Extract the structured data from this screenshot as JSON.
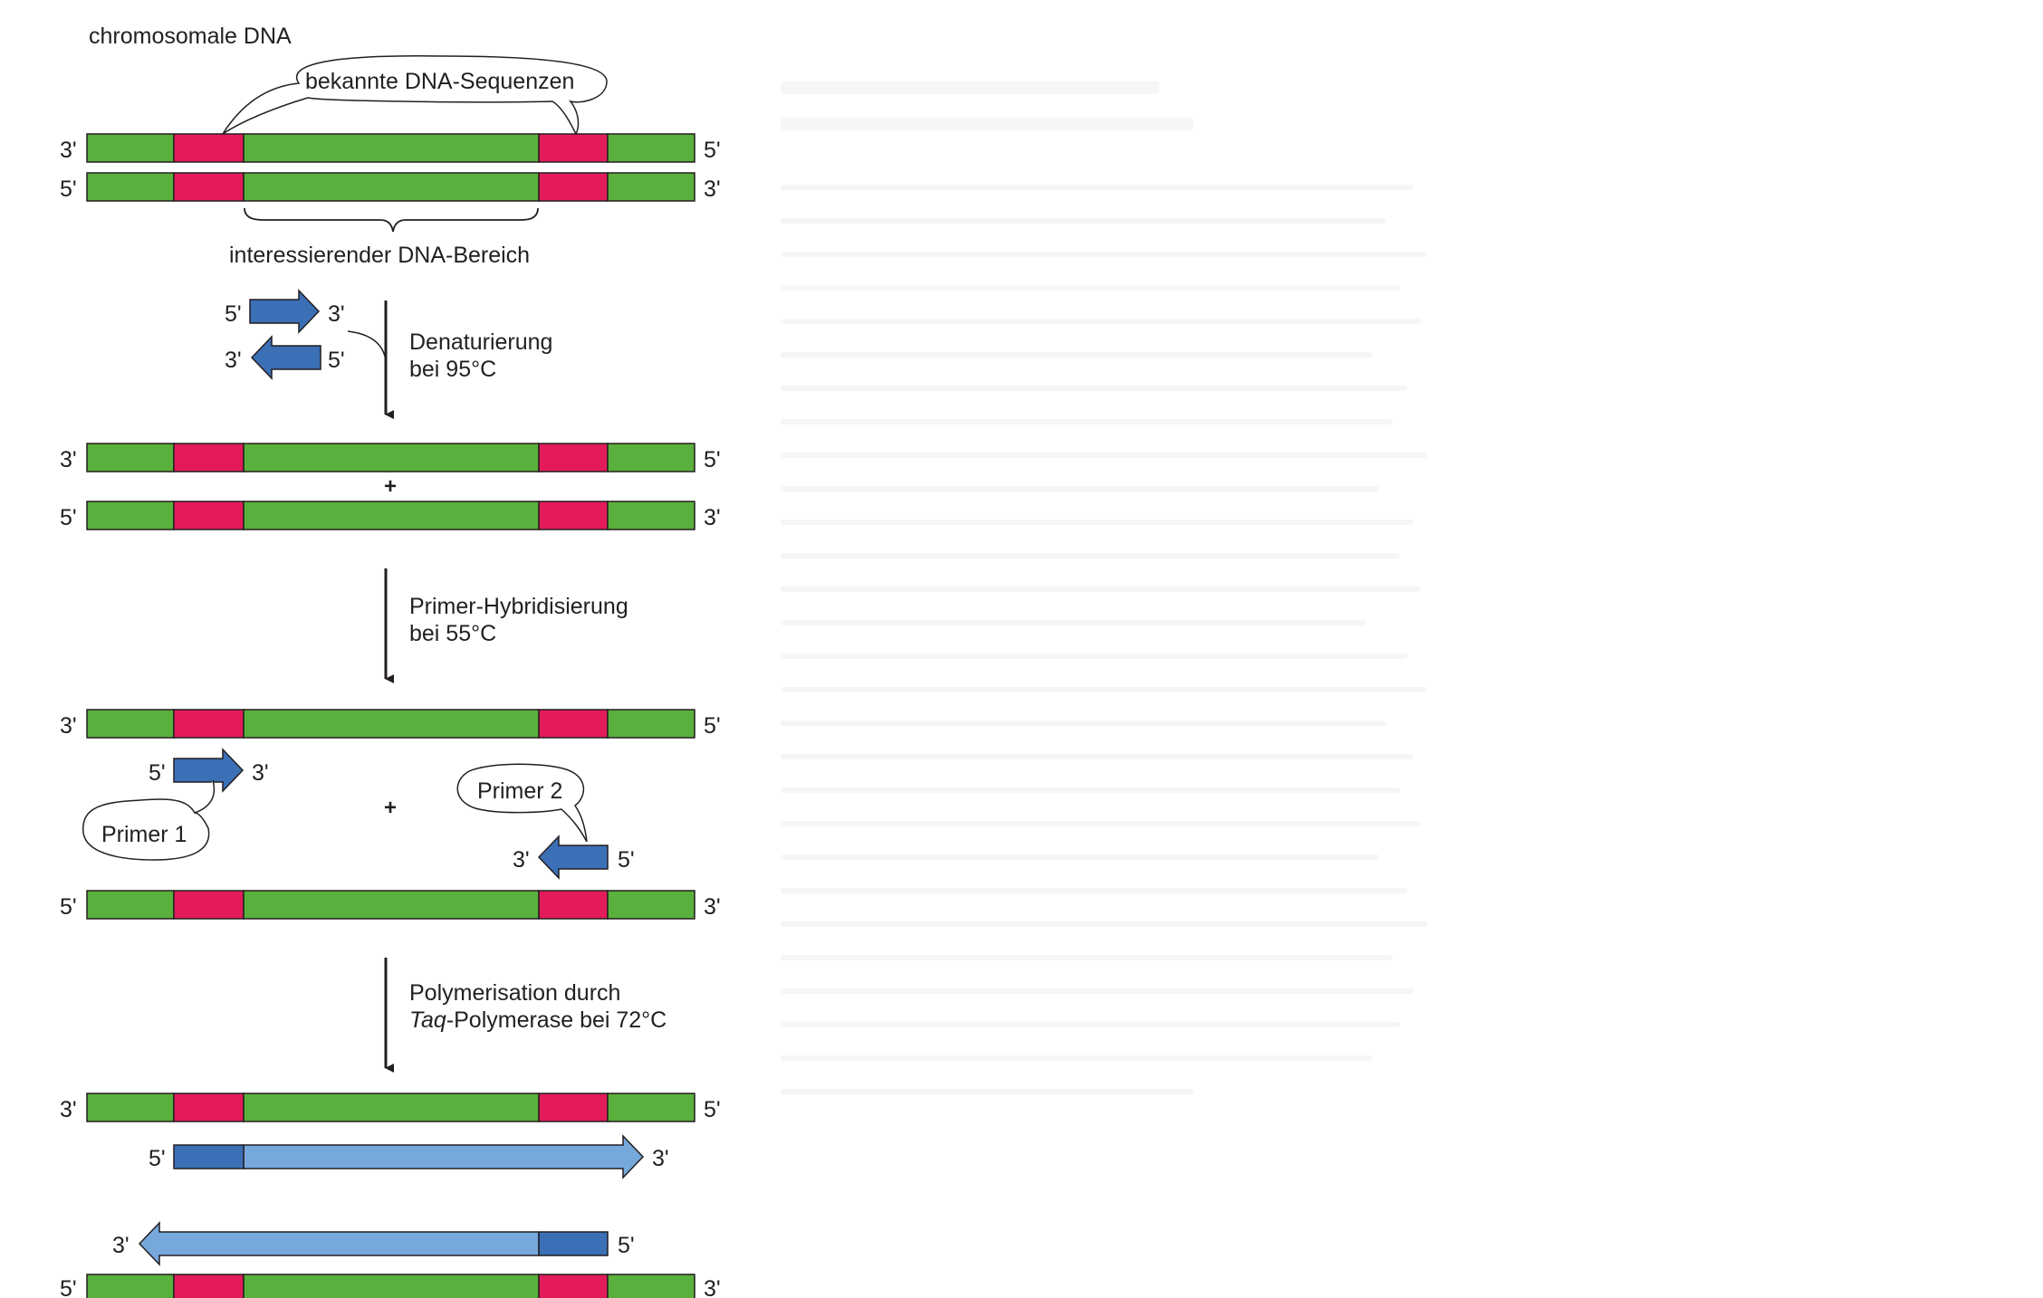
{
  "labels": {
    "chromosomal_dna": "chromosomale DNA",
    "known_sequences": "bekannte DNA-Sequenzen",
    "region_of_interest": "interessierender DNA-Bereich",
    "prime3": "3'",
    "prime5": "5'",
    "plus": "+",
    "primer1": "Primer 1",
    "primer2": "Primer 2"
  },
  "steps": {
    "denaturation": {
      "line1": "Denaturierung",
      "line2": "bei 95°C"
    },
    "hybridization": {
      "line1": "Primer-Hybridisierung",
      "line2": "bei 55°C"
    },
    "polymerization": {
      "line1": "Polymerisation durch",
      "line2_italic": "Taq",
      "line2_rest": "-Polymerase bei 72°C"
    }
  },
  "colors": {
    "dna_strand": "#5ab03c",
    "known_sequence": "#e31b5a",
    "primer": "#3b6fb6",
    "new_strand": "#76a8dc",
    "outline": "#231f20"
  }
}
